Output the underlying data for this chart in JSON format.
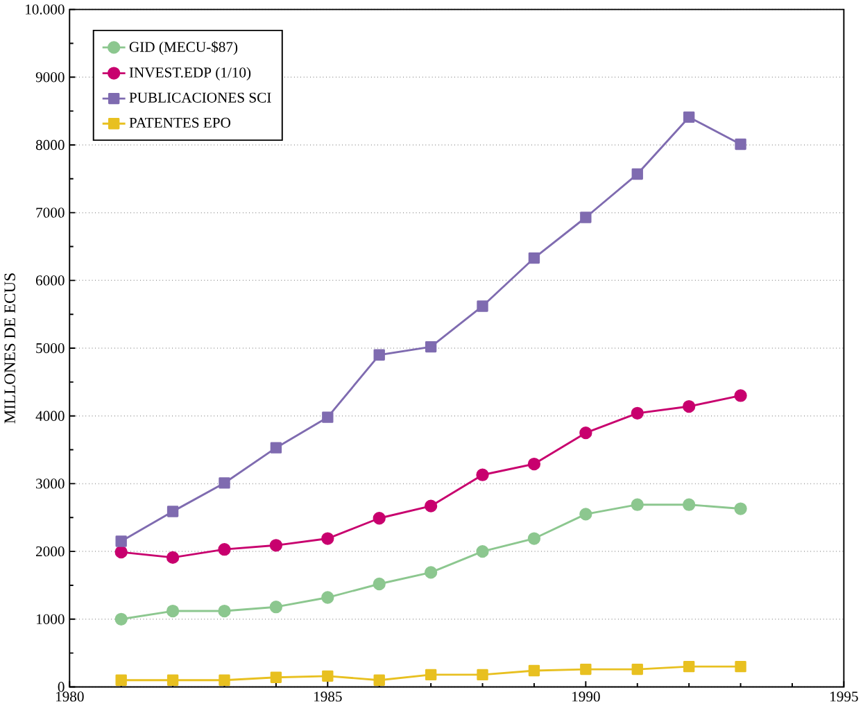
{
  "chart_data": {
    "type": "line",
    "ylabel": "MILLONES DE ECUS",
    "x": [
      1981,
      1982,
      1983,
      1984,
      1985,
      1986,
      1987,
      1988,
      1989,
      1990,
      1991,
      1992,
      1993
    ],
    "series": [
      {
        "name": "GID (MECU-$87)",
        "color": "#8cc78f",
        "marker": "circle",
        "values": [
          1000,
          1120,
          1120,
          1180,
          1320,
          1520,
          1690,
          2000,
          2190,
          2550,
          2690,
          2690,
          2630
        ]
      },
      {
        "name": "INVEST.EDP (1/10)",
        "color": "#c8006e",
        "marker": "circle",
        "values": [
          1990,
          1910,
          2030,
          2090,
          2190,
          2490,
          2670,
          3130,
          3290,
          3750,
          4040,
          4140,
          4300
        ]
      },
      {
        "name": "PUBLICACIONES SCI",
        "color": "#7f6bb0",
        "marker": "square",
        "values": [
          2150,
          2590,
          3010,
          3530,
          3980,
          4900,
          5020,
          5620,
          6330,
          6930,
          7570,
          8410,
          8010
        ]
      },
      {
        "name": "PATENTES EPO",
        "color": "#e8c020",
        "marker": "square",
        "values": [
          100,
          100,
          100,
          140,
          160,
          100,
          180,
          180,
          240,
          260,
          260,
          300,
          300
        ]
      }
    ],
    "xlim": [
      1980,
      1995
    ],
    "xticks": [
      1980,
      1985,
      1990,
      1995
    ],
    "ylim": [
      0,
      10000
    ],
    "yticks": [
      0,
      1000,
      2000,
      3000,
      4000,
      5000,
      6000,
      7000,
      8000,
      9000,
      {
        "value": 10000,
        "label": "10.000"
      }
    ],
    "grid": "y",
    "legend": "top left"
  }
}
